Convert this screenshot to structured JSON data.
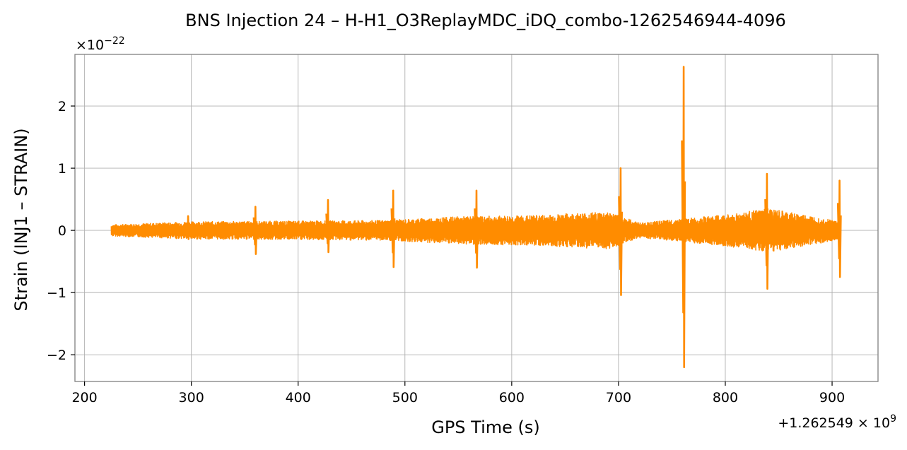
{
  "chart_data": {
    "type": "line",
    "title": "BNS Injection 24 – H-H1_O3ReplayMDC_iDQ_combo-1262546944-4096",
    "xlabel": "GPS Time (s)",
    "ylabel": "Strain (INJ1 – STRAIN)",
    "x_offset_label": "+1.262549",
    "x_offset_exponent": "9",
    "y_multiplier_label": "×10",
    "y_multiplier_exponent": "−22",
    "xlim": [
      191,
      943
    ],
    "ylim": [
      -2.43,
      2.83
    ],
    "x_ticks": [
      200,
      300,
      400,
      500,
      600,
      700,
      800,
      900
    ],
    "x_tick_labels": [
      "200",
      "300",
      "400",
      "500",
      "600",
      "700",
      "800",
      "900"
    ],
    "y_ticks": [
      -2,
      -1,
      0,
      1,
      2
    ],
    "y_tick_labels": [
      "−2",
      "−1",
      "0",
      "1",
      "2"
    ],
    "grid": true,
    "series": [
      {
        "color": "#ff8c00",
        "x_range": [
          225,
          907
        ],
        "background_envelope": [
          {
            "x": 225,
            "amplitude": 0.09
          },
          {
            "x": 300,
            "amplitude": 0.14
          },
          {
            "x": 400,
            "amplitude": 0.15
          },
          {
            "x": 480,
            "amplitude": 0.16
          },
          {
            "x": 550,
            "amplitude": 0.22
          },
          {
            "x": 620,
            "amplitude": 0.24
          },
          {
            "x": 690,
            "amplitude": 0.3
          },
          {
            "x": 720,
            "amplitude": 0.12
          },
          {
            "x": 800,
            "amplitude": 0.25
          },
          {
            "x": 840,
            "amplitude": 0.35
          },
          {
            "x": 907,
            "amplitude": 0.15
          }
        ],
        "peaks": [
          {
            "x": 297,
            "max": 0.23,
            "min": -0.14
          },
          {
            "x": 360,
            "max": 0.38,
            "min": -0.38
          },
          {
            "x": 428,
            "max": 0.49,
            "min": -0.35
          },
          {
            "x": 489,
            "max": 0.64,
            "min": -0.59
          },
          {
            "x": 567,
            "max": 0.64,
            "min": -0.6
          },
          {
            "x": 702,
            "max": 1.0,
            "min": -1.04
          },
          {
            "x": 761,
            "max": 2.63,
            "min": -2.2
          },
          {
            "x": 839,
            "max": 0.91,
            "min": -0.94
          },
          {
            "x": 907,
            "max": 0.8,
            "min": -0.75
          }
        ]
      }
    ]
  }
}
